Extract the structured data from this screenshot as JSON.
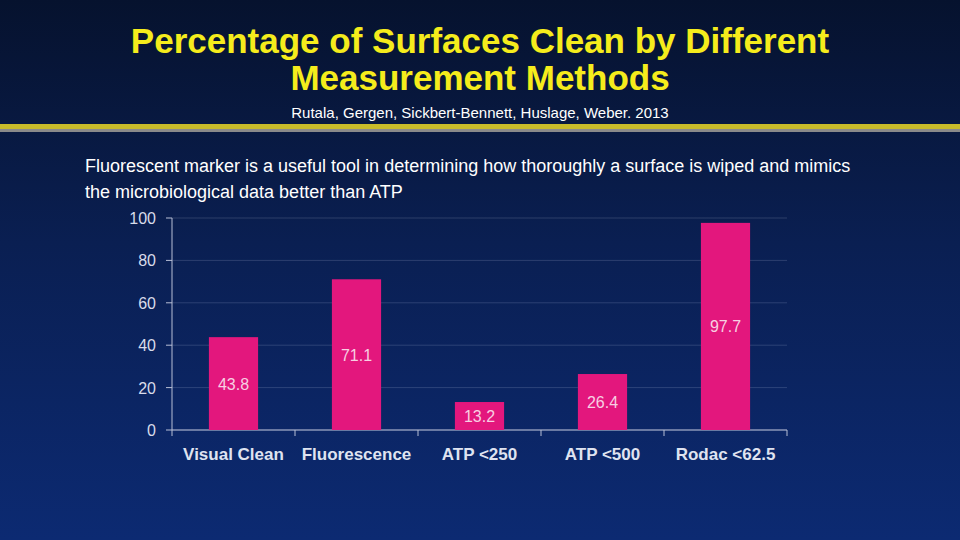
{
  "chart_data": {
    "type": "bar",
    "title": "Percentage of Surfaces Clean by Different Measurement Methods",
    "subtitle": "Rutala, Gergen, Sickbert-Bennett, Huslage, Weber. 2013",
    "annotations": [
      "Fluorescent marker is a useful tool in determining how thoroughly a surface is wiped and mimics the microbiological data better than ATP"
    ],
    "categories": [
      "Visual Clean",
      "Fluorescence",
      "ATP <250",
      "ATP <500",
      "Rodac <62.5"
    ],
    "values": [
      43.8,
      71.1,
      13.2,
      26.4,
      97.7
    ],
    "color": "#e3177d",
    "ylim": [
      0,
      100
    ],
    "yticks": [
      0,
      20,
      40,
      60,
      80,
      100
    ],
    "grid": true,
    "data_labels": true
  }
}
